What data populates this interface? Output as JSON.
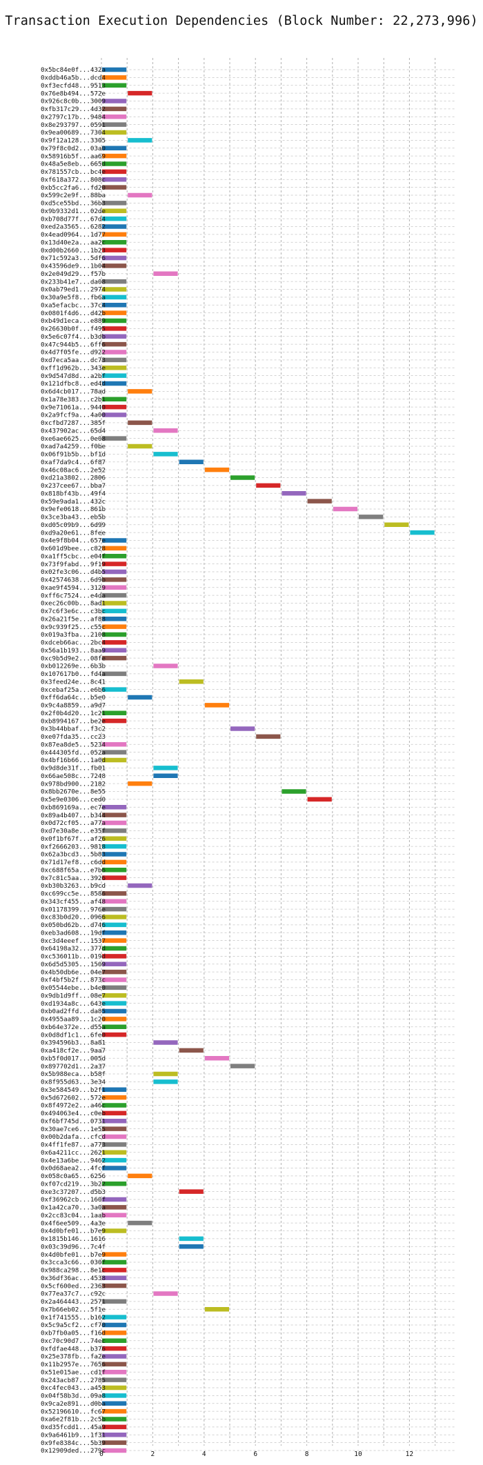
{
  "chart_data": {
    "type": "bar",
    "orientation": "horizontal",
    "title": "Transaction Execution Dependencies (Block Number: 22,273,996)",
    "xlabel": "",
    "ylabel": "",
    "xlim": [
      -0.5,
      13.8
    ],
    "xticks": [
      0,
      2,
      4,
      6,
      8,
      10,
      12
    ],
    "grid": true,
    "legend": "none",
    "palette": [
      "#1f77b4",
      "#ff7f0e",
      "#2ca02c",
      "#d62728",
      "#9467bd",
      "#8c564b",
      "#e377c2",
      "#7f7f7f",
      "#bcbd22",
      "#17becf"
    ],
    "categories": [
      "0x5bc84e0f...432a",
      "0xddb46a5b...dcd4",
      "0xf3ecfd48...9513",
      "0x76e8b494...572e",
      "0x926c8c0b...3009",
      "0xfb317c29...4d32",
      "0x2797c17b...9484",
      "0x8e293797...0591",
      "0x9ea00689...7304",
      "0x9f12a128...3305",
      "0x79f8c0d2...03a0",
      "0x58916b5f...aa69",
      "0x48a5e8eb...665d",
      "0x781557cb...bc4e",
      "0xf618a372...808c",
      "0xb5cc2fa6...fd20",
      "0x599c2e9f...88ba",
      "0xd5ce55bd...36b3",
      "0x9b9332d1...02de",
      "0xb708d77f...67d4",
      "0xed2a3565...6282",
      "0x4ead0964...1d77",
      "0x13d40e2a...aa2c",
      "0xd00b2660...1b23",
      "0x71c592a3...5df6",
      "0x43596de9...1b04",
      "0x2e049d29...f57b",
      "0x233b41e7...da08",
      "0x0ab79ed1...2974",
      "0x30a9e5f8...fb6a",
      "0xa5efacbc...37c4",
      "0x0801f4d6...d42b",
      "0xb49d1eca...e889",
      "0x26630b0f...f495",
      "0x5e6c07f4...b3db",
      "0x47c944b5...6ff6",
      "0x4d7f05fe...d922",
      "0xd7eca5aa...dc73",
      "0xff1d962b...343e",
      "0x9d547d8d...a2bf",
      "0x121dfbc8...ed4d",
      "0x6d4cb017...78ad",
      "0x1a78e383...c2b1",
      "0x9e71061a...9440",
      "0x2a9fcf9a...4a00",
      "0xcfbd7287...385f",
      "0x437902ac...65d4",
      "0xe6ae6625...0e08",
      "0xad7a4259...f0be",
      "0x06f91b5b...bf1d",
      "0xaf7da9c4...6f87",
      "0x46c08ac6...2e52",
      "0xd21a3802...2806",
      "0x237cee67...bba7",
      "0x818bf43b...49f4",
      "0x59e9ada1...432c",
      "0x9efe0618...861b",
      "0x3ce3ba43...eb5b",
      "0xd05c09b9...6d99",
      "0xd9a20e61...8fee",
      "0x4e9f8b04...657e",
      "0x601d9bee...c828",
      "0xa1ff5cbc...e04f",
      "0x73f9fabd...9f19",
      "0x02fe3c06...d4b5",
      "0x42574638...6d9b",
      "0xae9f4594...3129",
      "0xff6c7524...e4da",
      "0xec26c00b...8ad1",
      "0x7c6f3e6c...c3bc",
      "0x26a21f5e...af88",
      "0x9c939f25...c55c",
      "0x019a3fba...2108",
      "0xdceb66ac...2bc4",
      "0x56a1b193...8aa9",
      "0xc9b5d9e2...08fe",
      "0xb012269e...6b3b",
      "0x107617b0...fd4a",
      "0x3feed24e...8c41",
      "0xcebaf25a...e6b6",
      "0xff6da64c...b5e0",
      "0x9c4a8859...a9d7",
      "0x2f0b4d20...1c21",
      "0xb8994167...be2e",
      "0x3b44bbaf...f3c2",
      "0xe07fda35...cc23",
      "0x87ea8de5...5234",
      "0x444305fd...052a",
      "0x4bf16b66...1a0d",
      "0x9d8de31f...fb01",
      "0x66ae508c...7248",
      "0x978bd900...2182",
      "0x8bb2670e...8e55",
      "0x5e9e0306...ced0",
      "0xb869169a...ec7e",
      "0x89a4b407...b344",
      "0x0d72cf05...a77a",
      "0xd7e30a8e...e35f",
      "0x0f1bf67f...af26",
      "0xf2666203...9818",
      "0x62a3bcd3...5b83",
      "0x71d17ef8...c6dd",
      "0xc688f65a...e7b6",
      "0x7c81c5aa...3926",
      "0xb30b3263...b9cd",
      "0xc699cc5e...8586",
      "0x343cf455...af48",
      "0x01178399...976e",
      "0xc83b0d20...0966",
      "0x050bd62b...d746",
      "0xeb3ad608...19df",
      "0xc3d4eeef...1537",
      "0x64198a32...377d",
      "0xc536011b...019d",
      "0x6d5d5305...1509",
      "0x4b50db6e...04e7",
      "0xf4bf5b2f...873c",
      "0x05544ebe...b4e0",
      "0x9db1d9ff...08e7",
      "0xd1934a8c...643e",
      "0xb0ad2ffd...da85",
      "0x4955aa89...1c20",
      "0xb64e372e...d55a",
      "0x0d8df1c1...6fe0",
      "0x394596b3...8a81",
      "0xa418cf2e...9aa7",
      "0xb5f0d017...005d",
      "0x897702d1...2a37",
      "0x5b988eca...b58f",
      "0x8f955d63...3e34",
      "0x3e584549...b2f1",
      "0x5d672602...572e",
      "0x8f4972e2...a46c",
      "0x494063e4...c0eb",
      "0xf6bf745d...0731",
      "0x30ae7ce6...1e55",
      "0x00b2dafa...cfcd",
      "0x4ff1fe87...a773",
      "0x6a4211cc...2621",
      "0x4e13a6be...9462",
      "0x0d68aea2...4fcf",
      "0x058c0a65...6256",
      "0xf07cd219...3b22",
      "0xe3c37207...d5b3",
      "0xf36962cb...160f",
      "0x1a42ca70...3a0a",
      "0x2cc83c04...1aab",
      "0x4f6ee509...4a3e",
      "0x4d0bfe01...b7e9",
      "0x1815b146...1616",
      "0x03c39d96...7c4f",
      "0x4d0bfe01...b7e9",
      "0x3cca3c66...030f",
      "0x988ca298...8e1c",
      "0x36df36ac...4538",
      "0x5cf600ed...2363",
      "0x77ea37c7...c92c",
      "0x2a464443...2571",
      "0x7b66eb02...5f1e",
      "0x1f741555...b162",
      "0x5c9a5cf2...cf70",
      "0xb7fb0a05...f16d",
      "0xc70c90d7...74ec",
      "0xfdfae448...b376",
      "0x25e378fb...fa2e",
      "0x11b2957e...7656",
      "0x51e015ae...cd1f",
      "0x243acb87...2785",
      "0xc4fec043...a453",
      "0x04f58b3d...09a8",
      "0x9ca2e891...d0ba",
      "0x52196610...fc67",
      "0xa6e2f81b...2c5b",
      "0xd35fcdd1...45a9",
      "0x9a6461b9...1f31",
      "0x9fe8384c...5b39",
      "0x12909ded...279c"
    ],
    "starts": [
      0,
      0,
      0,
      1,
      0,
      0,
      0,
      0,
      0,
      1,
      0,
      0,
      0,
      0,
      0,
      0,
      1,
      0,
      0,
      0,
      0,
      0,
      0,
      0,
      0,
      0,
      2,
      0,
      0,
      0,
      0,
      0,
      0,
      0,
      0,
      0,
      0,
      0,
      0,
      0,
      0,
      1,
      0,
      0,
      0,
      1,
      2,
      0,
      1,
      2,
      3,
      4,
      5,
      6,
      7,
      8,
      9,
      10,
      11,
      12,
      0,
      0,
      0,
      0,
      0,
      0,
      0,
      0,
      0,
      0,
      0,
      0,
      0,
      0,
      0,
      0,
      2,
      0,
      3,
      0,
      1,
      4,
      0,
      0,
      5,
      6,
      0,
      0,
      0,
      2,
      2,
      1,
      7,
      8,
      0,
      0,
      0,
      0,
      0,
      0,
      0,
      0,
      0,
      0,
      1,
      0,
      0,
      0,
      0,
      0,
      0,
      0,
      0,
      0,
      0,
      0,
      0,
      0,
      0,
      0,
      0,
      0,
      0,
      0,
      2,
      3,
      4,
      5,
      2,
      2,
      0,
      0,
      0,
      0,
      0,
      0,
      0,
      0,
      0,
      0,
      0,
      1,
      0,
      3,
      0,
      0,
      0,
      1,
      0,
      3,
      3,
      0,
      0,
      0,
      0,
      0,
      2,
      0,
      4,
      0,
      0,
      0,
      0,
      0,
      0,
      0,
      0,
      0,
      0,
      0,
      0,
      0,
      0,
      0,
      0,
      0,
      0
    ],
    "values": [
      1,
      1,
      1,
      1,
      1,
      1,
      1,
      1,
      1,
      1,
      1,
      1,
      1,
      1,
      1,
      1,
      1,
      1,
      1,
      1,
      1,
      1,
      1,
      1,
      1,
      1,
      1,
      1,
      1,
      1,
      1,
      1,
      1,
      1,
      1,
      1,
      1,
      1,
      1,
      1,
      1,
      1,
      1,
      1,
      1,
      1,
      1,
      1,
      1,
      1,
      1,
      1,
      1,
      1,
      1,
      1,
      1,
      1,
      1,
      1,
      1,
      1,
      1,
      1,
      1,
      1,
      1,
      1,
      1,
      1,
      1,
      1,
      1,
      1,
      1,
      1,
      1,
      1,
      1,
      1,
      1,
      1,
      1,
      1,
      1,
      1,
      1,
      1,
      1,
      1,
      1,
      1,
      1,
      1,
      1,
      1,
      1,
      1,
      1,
      1,
      1,
      1,
      1,
      1,
      1,
      1,
      1,
      1,
      1,
      1,
      1,
      1,
      1,
      1,
      1,
      1,
      1,
      1,
      1,
      1,
      1,
      1,
      1,
      1,
      1,
      1,
      1,
      1,
      1,
      1,
      1,
      1,
      1,
      1,
      1,
      1,
      1,
      1,
      1,
      1,
      1,
      1,
      1,
      1,
      1,
      1,
      1,
      1,
      1,
      1,
      1,
      1,
      1,
      1,
      1,
      1,
      1,
      1,
      1,
      1,
      1,
      1,
      1,
      1,
      1,
      1,
      1,
      1,
      1,
      1,
      1,
      1,
      1,
      1,
      1,
      1,
      1
    ]
  }
}
